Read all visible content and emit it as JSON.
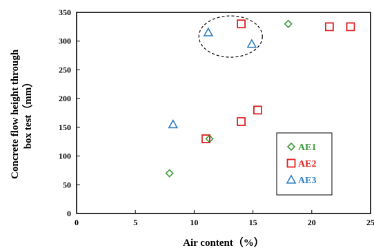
{
  "chart_data": {
    "type": "scatter",
    "xlabel": "Air content（%）",
    "ylabel": "Concrete flow height through box test（mm）",
    "ylabel_lines": [
      "Concrete flow height through",
      "box test（mm）"
    ],
    "xlim": [
      0,
      25
    ],
    "ylim": [
      0,
      350
    ],
    "xticks": [
      "0",
      "5",
      "10",
      "15",
      "20",
      "25"
    ],
    "yticks": [
      "0",
      "50",
      "100",
      "150",
      "200",
      "250",
      "300",
      "350"
    ],
    "grid": false,
    "legend_position": "bottom-right",
    "annotation": "dashed ellipse around points near x 11–15, y 295–330",
    "series": [
      {
        "name": "AE1",
        "marker": "diamond",
        "color": "#3a9a3a",
        "x": [
          7.9,
          11.3,
          18.0
        ],
        "y": [
          70,
          130,
          330
        ]
      },
      {
        "name": "AE2",
        "marker": "square",
        "color": "#e02020",
        "x": [
          11.0,
          14.0,
          15.4,
          14.0,
          21.5,
          23.3
        ],
        "y": [
          130,
          160,
          180,
          330,
          325,
          325
        ]
      },
      {
        "name": "AE3",
        "marker": "triangle",
        "color": "#2f7fc0",
        "x": [
          8.2,
          11.2,
          14.9
        ],
        "y": [
          155,
          315,
          295
        ]
      }
    ]
  }
}
